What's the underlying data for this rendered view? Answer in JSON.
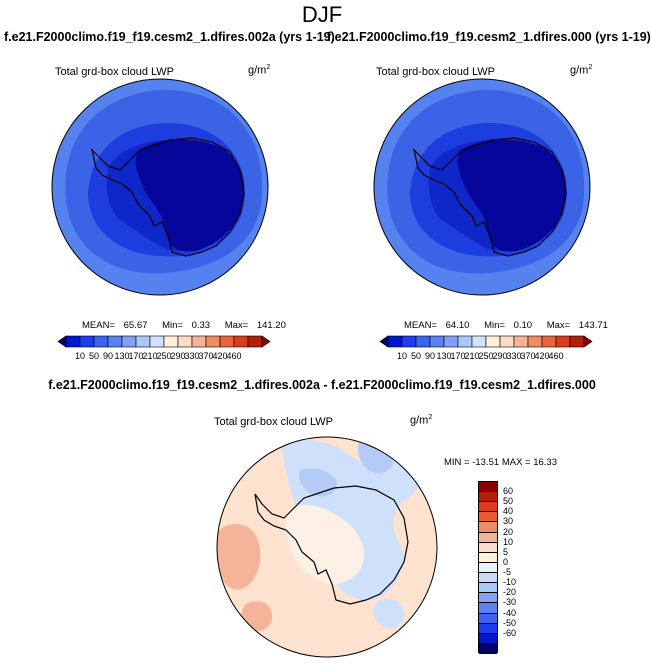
{
  "page": {
    "title": "DJF"
  },
  "panels": [
    {
      "title": "f.e21.F2000climo.f19_f19.cesm2_1.dfires.002a (yrs 1-19)",
      "variable": "Total grd-box cloud LWP",
      "units_base": "g/m",
      "units_exp": "2",
      "stats": {
        "mean_label": "MEAN=",
        "mean": "65.67",
        "min_label": "Min=",
        "min": "0.33",
        "max_label": "Max=",
        "max": "141.20"
      }
    },
    {
      "title": "f.e21.F2000climo.f19_f19.cesm2_1.dfires.000 (yrs 1-19)",
      "variable": "Total grd-box cloud LWP",
      "units_base": "g/m",
      "units_exp": "2",
      "stats": {
        "mean_label": "MEAN=",
        "mean": "64.10",
        "min_label": "Min=",
        "min": "0.10",
        "max_label": "Max=",
        "max": "143.71"
      }
    }
  ],
  "diff_panel": {
    "title": "f.e21.F2000climo.f19_f19.cesm2_1.dfires.002a - f.e21.F2000climo.f19_f19.cesm2_1.dfires.000",
    "variable": "Total grd-box cloud LWP",
    "units_base": "g/m",
    "units_exp": "2",
    "minmax": "MIN = -13.51 MAX =  16.33"
  },
  "colorbar_abs": {
    "labels": [
      "10",
      "50",
      "90",
      "130",
      "170",
      "210",
      "250",
      "290",
      "330",
      "370",
      "420",
      "460"
    ],
    "colors": [
      "#05006e",
      "#0018c8",
      "#1e3cf0",
      "#3c64f0",
      "#5a82f0",
      "#82a0f5",
      "#aac8fa",
      "#d2e1ff",
      "#fff0dc",
      "#fadcc8",
      "#f5b496",
      "#f08c64",
      "#eb643c",
      "#dc3c1e",
      "#b41e0a",
      "#8c0000"
    ]
  },
  "colorbar_diff": {
    "labels": [
      "60",
      "50",
      "40",
      "30",
      "20",
      "10",
      "5",
      "0",
      "-5",
      "-10",
      "-20",
      "-30",
      "-40",
      "-50",
      "-60"
    ],
    "colors": [
      "#8c0000",
      "#b41e0a",
      "#dc3c1e",
      "#eb5a32",
      "#f08c64",
      "#f5b496",
      "#fadcc8",
      "#fff0dc",
      "#e6f0ff",
      "#c8dcfa",
      "#aac8fa",
      "#82a0f5",
      "#5a82f0",
      "#3c64f0",
      "#1e3cf0",
      "#0018c8",
      "#05006e"
    ]
  },
  "map_fills": {
    "ocean_abs": "#3a63e6",
    "mid_abs": "#1e3ddf",
    "inner_abs": "#0f27c9",
    "ice_abs": "#07069a",
    "outer_band_abs": "#5682f0",
    "diff_base": "#fde3cf",
    "diff_light": "#fdf0e4",
    "diff_pos": "#f5b49a",
    "diff_neg": "#cfe0fb",
    "diff_neg2": "#b4cbf8"
  }
}
